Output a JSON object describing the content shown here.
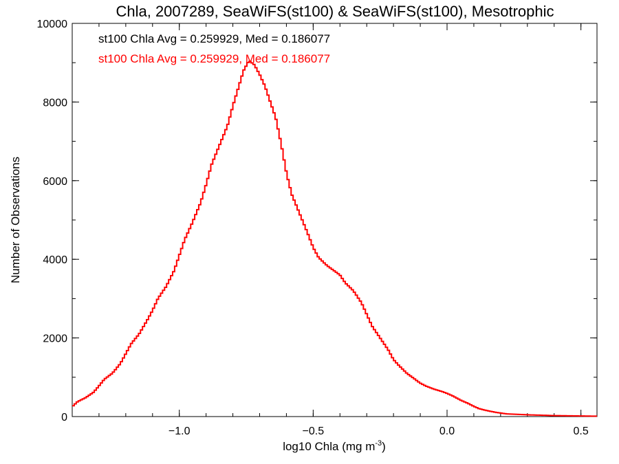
{
  "chart_data": {
    "type": "histogram",
    "title": "Chla, 2007289, SeaWiFS(st100) & SeaWiFS(st100), Mesotrophic",
    "xlabel": "log10 Chla (mg m",
    "xlabel_sup": "-3",
    "xlabel_end": ")",
    "ylabel": "Number of Observations",
    "xlim": [
      -1.4,
      0.56
    ],
    "ylim": [
      0,
      10000
    ],
    "xticks": [
      -1.0,
      -0.5,
      0.0,
      0.5
    ],
    "xtick_labels": [
      "−1.0",
      "−0.5",
      "0.0",
      "0.5"
    ],
    "yticks": [
      0,
      2000,
      4000,
      6000,
      8000,
      10000
    ],
    "ytick_labels": [
      "0",
      "2000",
      "4000",
      "6000",
      "8000",
      "10000"
    ],
    "x_minor_step": 0.1,
    "y_minor_step": 1000,
    "grid": false,
    "annotations": [
      {
        "text": "st100 Chla Avg = 0.259929, Med = 0.186077",
        "color": "#000000"
      },
      {
        "text": "st100 Chla Avg = 0.259929, Med = 0.186077",
        "color": "#ff0000"
      }
    ],
    "series": [
      {
        "color": "#ff0000",
        "points": [
          [
            -1.4,
            250
          ],
          [
            -1.38,
            380
          ],
          [
            -1.35,
            480
          ],
          [
            -1.32,
            620
          ],
          [
            -1.3,
            780
          ],
          [
            -1.28,
            950
          ],
          [
            -1.25,
            1100
          ],
          [
            -1.22,
            1350
          ],
          [
            -1.2,
            1600
          ],
          [
            -1.18,
            1850
          ],
          [
            -1.15,
            2100
          ],
          [
            -1.12,
            2450
          ],
          [
            -1.1,
            2700
          ],
          [
            -1.08,
            3000
          ],
          [
            -1.05,
            3300
          ],
          [
            -1.02,
            3700
          ],
          [
            -1.0,
            4100
          ],
          [
            -0.98,
            4500
          ],
          [
            -0.95,
            4950
          ],
          [
            -0.92,
            5450
          ],
          [
            -0.9,
            5900
          ],
          [
            -0.88,
            6400
          ],
          [
            -0.85,
            6900
          ],
          [
            -0.82,
            7400
          ],
          [
            -0.8,
            7900
          ],
          [
            -0.78,
            8350
          ],
          [
            -0.76,
            8800
          ],
          [
            -0.74,
            9050
          ],
          [
            -0.72,
            8950
          ],
          [
            -0.7,
            8700
          ],
          [
            -0.68,
            8400
          ],
          [
            -0.66,
            8000
          ],
          [
            -0.64,
            7600
          ],
          [
            -0.62,
            6950
          ],
          [
            -0.6,
            6200
          ],
          [
            -0.58,
            5650
          ],
          [
            -0.55,
            5150
          ],
          [
            -0.52,
            4650
          ],
          [
            -0.5,
            4300
          ],
          [
            -0.48,
            4050
          ],
          [
            -0.45,
            3850
          ],
          [
            -0.42,
            3700
          ],
          [
            -0.4,
            3600
          ],
          [
            -0.38,
            3400
          ],
          [
            -0.35,
            3200
          ],
          [
            -0.32,
            2900
          ],
          [
            -0.3,
            2600
          ],
          [
            -0.28,
            2300
          ],
          [
            -0.25,
            2000
          ],
          [
            -0.22,
            1700
          ],
          [
            -0.2,
            1450
          ],
          [
            -0.18,
            1300
          ],
          [
            -0.15,
            1100
          ],
          [
            -0.12,
            950
          ],
          [
            -0.1,
            850
          ],
          [
            -0.08,
            780
          ],
          [
            -0.05,
            700
          ],
          [
            -0.02,
            640
          ],
          [
            0.0,
            590
          ],
          [
            0.02,
            530
          ],
          [
            0.05,
            420
          ],
          [
            0.08,
            330
          ],
          [
            0.1,
            260
          ],
          [
            0.12,
            200
          ],
          [
            0.15,
            150
          ],
          [
            0.18,
            110
          ],
          [
            0.2,
            90
          ],
          [
            0.22,
            70
          ],
          [
            0.25,
            60
          ],
          [
            0.3,
            45
          ],
          [
            0.35,
            35
          ],
          [
            0.4,
            25
          ],
          [
            0.45,
            20
          ],
          [
            0.5,
            15
          ],
          [
            0.56,
            10
          ]
        ]
      }
    ]
  }
}
